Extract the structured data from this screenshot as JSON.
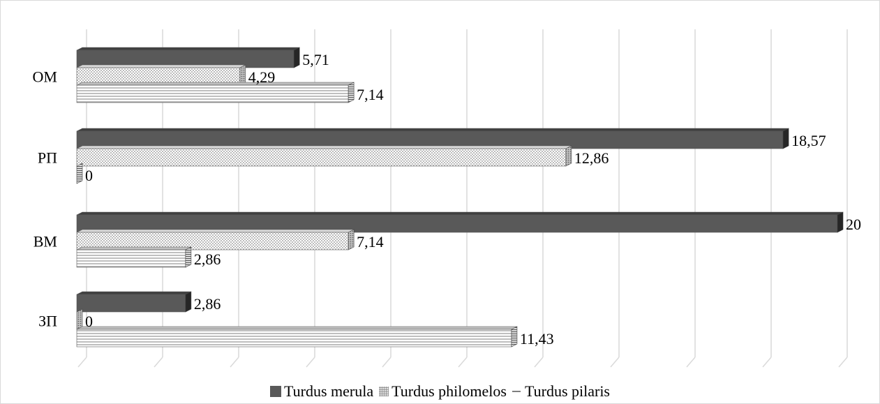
{
  "chart_data": {
    "type": "bar",
    "orientation": "horizontal",
    "style": "3d-clustered-bar",
    "categories": [
      "ОМ",
      "РП",
      "ВМ",
      "ЗП"
    ],
    "series": [
      {
        "name": "Turdus merula",
        "values": [
          5.71,
          18.57,
          20,
          2.86
        ],
        "labels": [
          "5,71",
          "18,57",
          "20",
          "2,86"
        ],
        "color": "#595959",
        "pattern": "solid"
      },
      {
        "name": "Turdus philomelos",
        "values": [
          4.29,
          12.86,
          7.14,
          0
        ],
        "labels": [
          "4,29",
          "12,86",
          "7,14",
          "0"
        ],
        "color": "#a6a6a6",
        "pattern": "dots"
      },
      {
        "name": "Turdus pilaris",
        "values": [
          7.14,
          0,
          2.86,
          11.43
        ],
        "labels": [
          "7,14",
          "0",
          "2,86",
          "11,43"
        ],
        "color": "#7f7f7f",
        "pattern": "horizontal-lines"
      }
    ],
    "xlim": [
      0,
      20
    ],
    "grid": true,
    "gridline_color": "#d9d9d9",
    "legend_position": "bottom",
    "title": "",
    "xlabel": "",
    "ylabel": ""
  }
}
